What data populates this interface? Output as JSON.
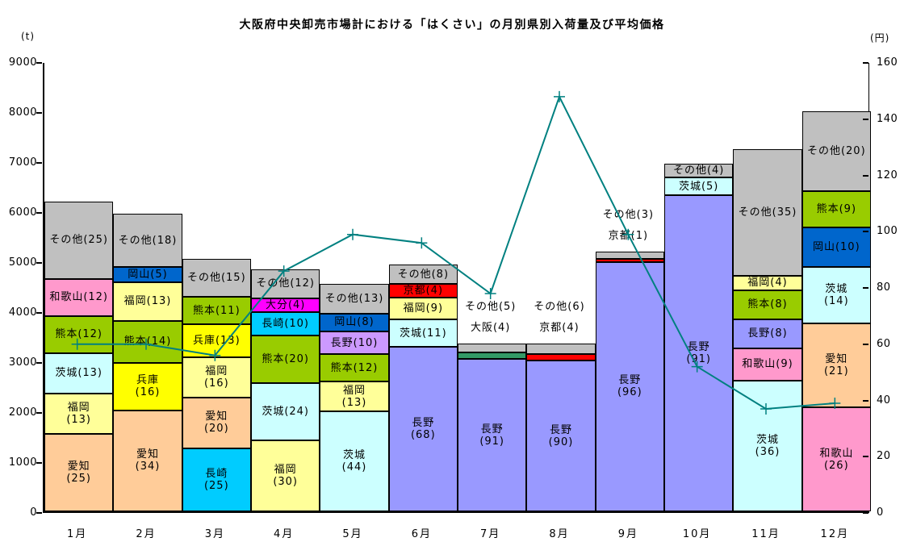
{
  "chart_data": {
    "type": "bar",
    "subtype": "stacked-bar-with-line",
    "title": "大阪府中央卸売市場計における「はくさい」の月別県別入荷量及び平均価格",
    "left_axis": {
      "unit": "(t)",
      "min": 0,
      "max": 9000,
      "step": 1000,
      "ticks": [
        0,
        1000,
        2000,
        3000,
        4000,
        5000,
        6000,
        7000,
        8000,
        9000
      ]
    },
    "right_axis": {
      "unit": "(円)",
      "min": 0,
      "max": 160,
      "step": 20,
      "ticks": [
        0,
        20,
        40,
        60,
        80,
        100,
        120,
        140,
        160
      ]
    },
    "grid": false,
    "legend": "none",
    "colors": {
      "愛知": "#FFCC99",
      "福岡": "#FFFF99",
      "茨城": "#CCFFFF",
      "熊本": "#99CC00",
      "和歌山": "#FF99CC",
      "その他": "#C0C0C0",
      "兵庫": "#FFFF00",
      "岡山": "#0066CC",
      "長崎": "#00CCFF",
      "大分": "#FF00FF",
      "長野": "#9999FF",
      "京都": "#FF0000",
      "大阪": "#339966",
      "line": "#008080"
    },
    "months": [
      {
        "label": "1月",
        "total": 6200,
        "segments": [
          {
            "name": "愛知",
            "pct": 25,
            "value": 1550,
            "lines": [
              "愛知",
              "(25)"
            ]
          },
          {
            "name": "福岡",
            "pct": 13,
            "value": 806,
            "lines": [
              "福岡",
              "(13)"
            ]
          },
          {
            "name": "茨城",
            "pct": 13,
            "value": 806,
            "lines": [
              "茨城(13)"
            ]
          },
          {
            "name": "熊本",
            "pct": 12,
            "value": 744,
            "lines": [
              "熊本(12)"
            ]
          },
          {
            "name": "和歌山",
            "pct": 12,
            "value": 744,
            "lines": [
              "和歌山(12)"
            ]
          },
          {
            "name": "その他",
            "pct": 25,
            "value": 1550,
            "lines": [
              "その他(25)"
            ]
          }
        ]
      },
      {
        "label": "2月",
        "total": 5950,
        "segments": [
          {
            "name": "愛知",
            "pct": 34,
            "value": 2023,
            "lines": [
              "愛知",
              "(34)"
            ]
          },
          {
            "name": "兵庫",
            "pct": 16,
            "value": 952,
            "lines": [
              "兵庫",
              "(16)"
            ]
          },
          {
            "name": "熊本",
            "pct": 14,
            "value": 833,
            "lines": [
              "熊本(14)"
            ]
          },
          {
            "name": "福岡",
            "pct": 13,
            "value": 774,
            "lines": [
              "福岡(13)"
            ]
          },
          {
            "name": "岡山",
            "pct": 5,
            "value": 298,
            "lines": [
              "岡山(5)"
            ]
          },
          {
            "name": "その他",
            "pct": 18,
            "value": 1070,
            "lines": [
              "その他(18)"
            ]
          }
        ]
      },
      {
        "label": "3月",
        "total": 5050,
        "segments": [
          {
            "name": "長崎",
            "pct": 25,
            "value": 1263,
            "lines": [
              "長崎",
              "(25)"
            ]
          },
          {
            "name": "愛知",
            "pct": 20,
            "value": 1010,
            "lines": [
              "愛知",
              "(20)"
            ]
          },
          {
            "name": "福岡",
            "pct": 16,
            "value": 808,
            "lines": [
              "福岡",
              "(16)"
            ]
          },
          {
            "name": "兵庫",
            "pct": 13,
            "value": 656,
            "lines": [
              "兵庫(13)"
            ]
          },
          {
            "name": "熊本",
            "pct": 11,
            "value": 556,
            "lines": [
              "熊本(11)"
            ]
          },
          {
            "name": "その他",
            "pct": 15,
            "value": 757,
            "lines": [
              "その他(15)"
            ]
          }
        ]
      },
      {
        "label": "4月",
        "total": 4750,
        "segments": [
          {
            "name": "福岡",
            "pct": 30,
            "value": 1425,
            "lines": [
              "福岡",
              "(30)"
            ]
          },
          {
            "name": "茨城",
            "pct": 24,
            "value": 1140,
            "lines": [
              "茨城(24)"
            ]
          },
          {
            "name": "熊本",
            "pct": 20,
            "value": 950,
            "lines": [
              "熊本(20)"
            ]
          },
          {
            "name": "長崎",
            "pct": 10,
            "value": 475,
            "lines": [
              "長崎(10)"
            ]
          },
          {
            "name": "大分",
            "pct": 4,
            "value": 190,
            "lines": [
              "大分(4)"
            ]
          },
          {
            "name": "その他",
            "pct": 12,
            "value": 570,
            "lines": [
              "その他(12)"
            ]
          }
        ]
      },
      {
        "label": "5月",
        "total": 4550,
        "segments": [
          {
            "name": "茨城",
            "pct": 44,
            "value": 2002,
            "lines": [
              "茨城",
              "(44)"
            ]
          },
          {
            "name": "福岡",
            "pct": 13,
            "value": 592,
            "lines": [
              "福岡",
              "(13)"
            ]
          },
          {
            "name": "熊本",
            "pct": 12,
            "value": 546,
            "lines": [
              "熊本(12)"
            ]
          },
          {
            "name": "長野",
            "pct": 10,
            "value": 455,
            "lines": [
              "長野(10)"
            ],
            "color": "#CC99FF"
          },
          {
            "name": "岡山",
            "pct": 8,
            "value": 364,
            "lines": [
              "岡山(8)"
            ]
          },
          {
            "name": "その他",
            "pct": 13,
            "value": 591,
            "lines": [
              "その他(13)"
            ]
          }
        ]
      },
      {
        "label": "6月",
        "total": 4850,
        "segments": [
          {
            "name": "長野",
            "pct": 68,
            "value": 3298,
            "lines": [
              "長野",
              "(68)"
            ]
          },
          {
            "name": "茨城",
            "pct": 11,
            "value": 534,
            "lines": [
              "茨城(11)"
            ]
          },
          {
            "name": "福岡",
            "pct": 9,
            "value": 436,
            "lines": [
              "福岡(9)"
            ]
          },
          {
            "name": "京都",
            "pct": 4,
            "value": 194,
            "lines": [
              "京都(4)"
            ]
          },
          {
            "name": "その他",
            "pct": 8,
            "value": 388,
            "lines": [
              "その他(8)"
            ]
          }
        ]
      },
      {
        "label": "7月",
        "total": 3350,
        "outside_labels": [
          "その他(5)",
          "大阪(4)"
        ],
        "segments": [
          {
            "name": "長野",
            "pct": 91,
            "value": 3048,
            "lines": [
              "長野",
              "(91)"
            ]
          },
          {
            "name": "大阪",
            "pct": 4,
            "value": 134,
            "lines": []
          },
          {
            "name": "その他",
            "pct": 5,
            "value": 168,
            "lines": []
          }
        ]
      },
      {
        "label": "8月",
        "total": 3350,
        "outside_labels": [
          "その他(6)",
          "京都(4)"
        ],
        "segments": [
          {
            "name": "長野",
            "pct": 90,
            "value": 3015,
            "lines": [
              "長野",
              "(90)"
            ]
          },
          {
            "name": "京都",
            "pct": 4,
            "value": 134,
            "lines": []
          },
          {
            "name": "その他",
            "pct": 6,
            "value": 201,
            "lines": []
          }
        ]
      },
      {
        "label": "9月",
        "total": 5200,
        "outside_labels": [
          "その他(3)",
          "京都(1)"
        ],
        "segments": [
          {
            "name": "長野",
            "pct": 96,
            "value": 4992,
            "lines": [
              "長野",
              "(96)"
            ]
          },
          {
            "name": "京都",
            "pct": 1,
            "value": 52,
            "lines": []
          },
          {
            "name": "その他",
            "pct": 3,
            "value": 156,
            "lines": []
          }
        ]
      },
      {
        "label": "10月",
        "total": 6950,
        "segments": [
          {
            "name": "長野",
            "pct": 91,
            "value": 6324,
            "lines": [
              "長野",
              "(91)"
            ]
          },
          {
            "name": "茨城",
            "pct": 5,
            "value": 348,
            "lines": [
              "茨城(5)"
            ]
          },
          {
            "name": "その他",
            "pct": 4,
            "value": 278,
            "lines": [
              "その他(4)"
            ]
          }
        ]
      },
      {
        "label": "11月",
        "total": 7250,
        "segments": [
          {
            "name": "茨城",
            "pct": 36,
            "value": 2610,
            "lines": [
              "茨城",
              "(36)"
            ]
          },
          {
            "name": "和歌山",
            "pct": 9,
            "value": 653,
            "lines": [
              "和歌山(9)"
            ]
          },
          {
            "name": "長野",
            "pct": 8,
            "value": 580,
            "lines": [
              "長野(8)"
            ]
          },
          {
            "name": "熊本",
            "pct": 8,
            "value": 580,
            "lines": [
              "熊本(8)"
            ]
          },
          {
            "name": "福岡",
            "pct": 4,
            "value": 290,
            "lines": [
              "福岡(4)"
            ]
          },
          {
            "name": "その他",
            "pct": 35,
            "value": 2537,
            "lines": [
              "その他(35)"
            ]
          }
        ]
      },
      {
        "label": "12月",
        "total": 8000,
        "segments": [
          {
            "name": "和歌山",
            "pct": 26,
            "value": 2080,
            "lines": [
              "和歌山",
              "(26)"
            ]
          },
          {
            "name": "愛知",
            "pct": 21,
            "value": 1680,
            "lines": [
              "愛知",
              "(21)"
            ]
          },
          {
            "name": "茨城",
            "pct": 14,
            "value": 1120,
            "lines": [
              "茨城",
              "(14)"
            ]
          },
          {
            "name": "岡山",
            "pct": 10,
            "value": 800,
            "lines": [
              "岡山(10)"
            ]
          },
          {
            "name": "熊本",
            "pct": 9,
            "value": 720,
            "lines": [
              "熊本(9)"
            ]
          },
          {
            "name": "その他",
            "pct": 20,
            "value": 1600,
            "lines": [
              "その他(20)"
            ]
          }
        ]
      }
    ],
    "price": {
      "name": "平均価格",
      "unit": "円",
      "values": [
        60,
        60,
        56,
        86,
        99,
        96,
        78,
        148,
        99,
        52,
        37,
        39
      ]
    }
  }
}
